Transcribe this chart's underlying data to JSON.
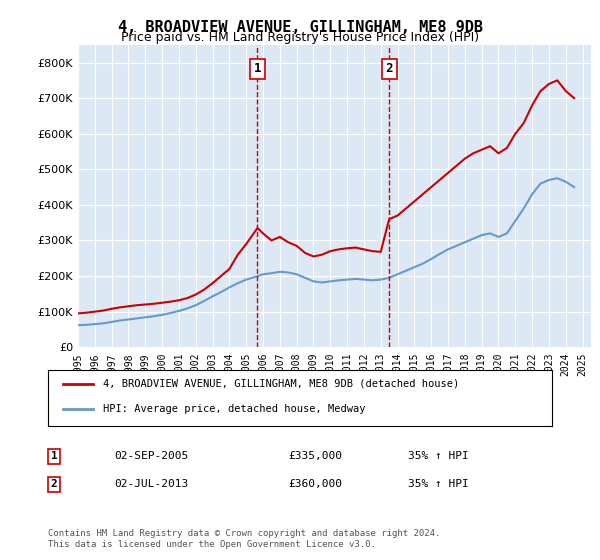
{
  "title": "4, BROADVIEW AVENUE, GILLINGHAM, ME8 9DB",
  "subtitle": "Price paid vs. HM Land Registry's House Price Index (HPI)",
  "bg_color": "#dce9f5",
  "plot_bg_color": "#dce9f5",
  "red_line_color": "#cc0000",
  "blue_line_color": "#6699cc",
  "marker1_year": 2005.67,
  "marker1_label": "1",
  "marker1_price": 335000,
  "marker1_hpi_pct": "35% ↑ HPI",
  "marker1_date": "02-SEP-2005",
  "marker2_year": 2013.5,
  "marker2_label": "2",
  "marker2_price": 360000,
  "marker2_hpi_pct": "35% ↑ HPI",
  "marker2_date": "02-JUL-2013",
  "legend_line1": "4, BROADVIEW AVENUE, GILLINGHAM, ME8 9DB (detached house)",
  "legend_line2": "HPI: Average price, detached house, Medway",
  "footer": "Contains HM Land Registry data © Crown copyright and database right 2024.\nThis data is licensed under the Open Government Licence v3.0.",
  "ylim": [
    0,
    850000
  ],
  "yticks": [
    0,
    100000,
    200000,
    300000,
    400000,
    500000,
    600000,
    700000,
    800000
  ],
  "xlim_start": 1995.0,
  "xlim_end": 2025.5,
  "red_years": [
    1995.0,
    1995.5,
    1996.0,
    1996.5,
    1997.0,
    1997.5,
    1998.0,
    1998.5,
    1999.0,
    1999.5,
    2000.0,
    2000.5,
    2001.0,
    2001.5,
    2002.0,
    2002.5,
    2003.0,
    2003.5,
    2004.0,
    2004.5,
    2005.0,
    2005.67,
    2006.0,
    2006.5,
    2007.0,
    2007.5,
    2008.0,
    2008.5,
    2009.0,
    2009.5,
    2010.0,
    2010.5,
    2011.0,
    2011.5,
    2012.0,
    2012.5,
    2013.0,
    2013.5,
    2014.0,
    2014.5,
    2015.0,
    2015.5,
    2016.0,
    2016.5,
    2017.0,
    2017.5,
    2018.0,
    2018.5,
    2019.0,
    2019.5,
    2020.0,
    2020.5,
    2021.0,
    2021.5,
    2022.0,
    2022.5,
    2023.0,
    2023.5,
    2024.0,
    2024.5
  ],
  "red_values": [
    95000,
    97000,
    100000,
    103000,
    108000,
    112000,
    115000,
    118000,
    120000,
    122000,
    125000,
    128000,
    132000,
    138000,
    148000,
    162000,
    180000,
    200000,
    220000,
    260000,
    290000,
    335000,
    320000,
    300000,
    310000,
    295000,
    285000,
    265000,
    255000,
    260000,
    270000,
    275000,
    278000,
    280000,
    275000,
    270000,
    268000,
    360000,
    370000,
    390000,
    410000,
    430000,
    450000,
    470000,
    490000,
    510000,
    530000,
    545000,
    555000,
    565000,
    545000,
    560000,
    600000,
    630000,
    680000,
    720000,
    740000,
    750000,
    720000,
    700000
  ],
  "blue_years": [
    1995.0,
    1995.5,
    1996.0,
    1996.5,
    1997.0,
    1997.5,
    1998.0,
    1998.5,
    1999.0,
    1999.5,
    2000.0,
    2000.5,
    2001.0,
    2001.5,
    2002.0,
    2002.5,
    2003.0,
    2003.5,
    2004.0,
    2004.5,
    2005.0,
    2005.5,
    2006.0,
    2006.5,
    2007.0,
    2007.5,
    2008.0,
    2008.5,
    2009.0,
    2009.5,
    2010.0,
    2010.5,
    2011.0,
    2011.5,
    2012.0,
    2012.5,
    2013.0,
    2013.5,
    2014.0,
    2014.5,
    2015.0,
    2015.5,
    2016.0,
    2016.5,
    2017.0,
    2017.5,
    2018.0,
    2018.5,
    2019.0,
    2019.5,
    2020.0,
    2020.5,
    2021.0,
    2021.5,
    2022.0,
    2022.5,
    2023.0,
    2023.5,
    2024.0,
    2024.5
  ],
  "blue_values": [
    62000,
    63000,
    65000,
    67000,
    71000,
    75000,
    78000,
    81000,
    84000,
    87000,
    91000,
    96000,
    102000,
    109000,
    118000,
    130000,
    143000,
    155000,
    168000,
    180000,
    190000,
    197000,
    205000,
    208000,
    212000,
    210000,
    205000,
    195000,
    185000,
    182000,
    185000,
    188000,
    190000,
    192000,
    190000,
    188000,
    190000,
    195000,
    205000,
    215000,
    225000,
    235000,
    248000,
    262000,
    275000,
    285000,
    295000,
    305000,
    315000,
    320000,
    310000,
    320000,
    355000,
    390000,
    430000,
    460000,
    470000,
    475000,
    465000,
    450000
  ]
}
